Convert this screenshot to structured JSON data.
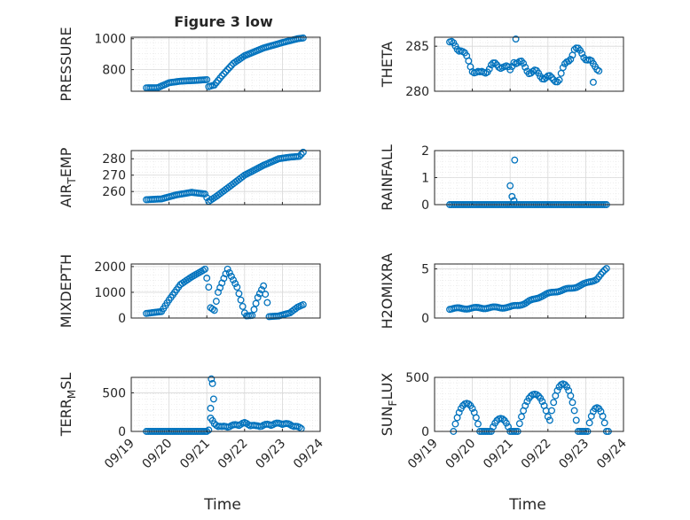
{
  "figure": {
    "title": "Figure 3 low",
    "xlabel": "Time"
  },
  "x_tick_labels": [
    "09/19",
    "09/20",
    "09/21",
    "09/22",
    "09/23",
    "09/24"
  ],
  "chart_data": [
    {
      "type": "scatter",
      "id": "pressure",
      "ylabel": "PRESSURE",
      "xlim": [
        0,
        5
      ],
      "ylim": [
        660,
        1010
      ],
      "yticks": [
        800,
        1000
      ],
      "show_xticklabels": false,
      "series": [
        {
          "x": [],
          "y": []
        }
      ]
    },
    {
      "type": "scatter",
      "id": "theta",
      "ylabel": "THETA",
      "xlim": [
        0,
        5
      ],
      "ylim": [
        280,
        286
      ],
      "yticks": [
        280,
        285
      ],
      "show_xticklabels": false,
      "series": [
        {
          "x": [],
          "y": []
        }
      ]
    },
    {
      "type": "scatter",
      "id": "air_temp",
      "ylabel": "AIR_TEMP",
      "ylabel_main": "AIR",
      "ylabel_sub": "T",
      "ylabel_rest": "EMP",
      "xlim": [
        0,
        5
      ],
      "ylim": [
        252,
        285
      ],
      "yticks": [
        260,
        270,
        280
      ],
      "show_xticklabels": false,
      "series": [
        {
          "x": [],
          "y": []
        }
      ]
    },
    {
      "type": "scatter",
      "id": "rainfall",
      "ylabel": "RAINFALL",
      "xlim": [
        0,
        5
      ],
      "ylim": [
        0,
        2
      ],
      "yticks": [
        0,
        1,
        2
      ],
      "show_xticklabels": false,
      "series": [
        {
          "x": [],
          "y": []
        }
      ]
    },
    {
      "type": "scatter",
      "id": "mixdepth",
      "ylabel": "MIXDEPTH",
      "xlim": [
        0,
        5
      ],
      "ylim": [
        0,
        2100
      ],
      "yticks": [
        0,
        1000,
        2000
      ],
      "show_xticklabels": false,
      "series": [
        {
          "x": [],
          "y": []
        }
      ]
    },
    {
      "type": "scatter",
      "id": "h2omixra",
      "ylabel": "H2OMIXRA",
      "xlim": [
        0,
        5
      ],
      "ylim": [
        0,
        5.5
      ],
      "yticks": [
        0,
        5
      ],
      "show_xticklabels": false,
      "series": [
        {
          "x": [],
          "y": []
        }
      ]
    },
    {
      "type": "scatter",
      "id": "terr_msl",
      "ylabel": "TERR_MSL",
      "ylabel_main": "TERR",
      "ylabel_sub": "M",
      "ylabel_rest": "SL",
      "xlim": [
        0,
        5
      ],
      "ylim": [
        0,
        700
      ],
      "yticks": [
        0,
        500
      ],
      "show_xticklabels": true,
      "series": [
        {
          "x": [],
          "y": []
        }
      ]
    },
    {
      "type": "scatter",
      "id": "sun_flux",
      "ylabel": "SUN_FLUX",
      "ylabel_main": "SUN",
      "ylabel_sub": "F",
      "ylabel_rest": "LUX",
      "xlim": [
        0,
        5
      ],
      "ylim": [
        0,
        500
      ],
      "yticks": [
        0,
        500
      ],
      "show_xticklabels": true,
      "series": [
        {
          "x": [],
          "y": []
        }
      ]
    }
  ]
}
